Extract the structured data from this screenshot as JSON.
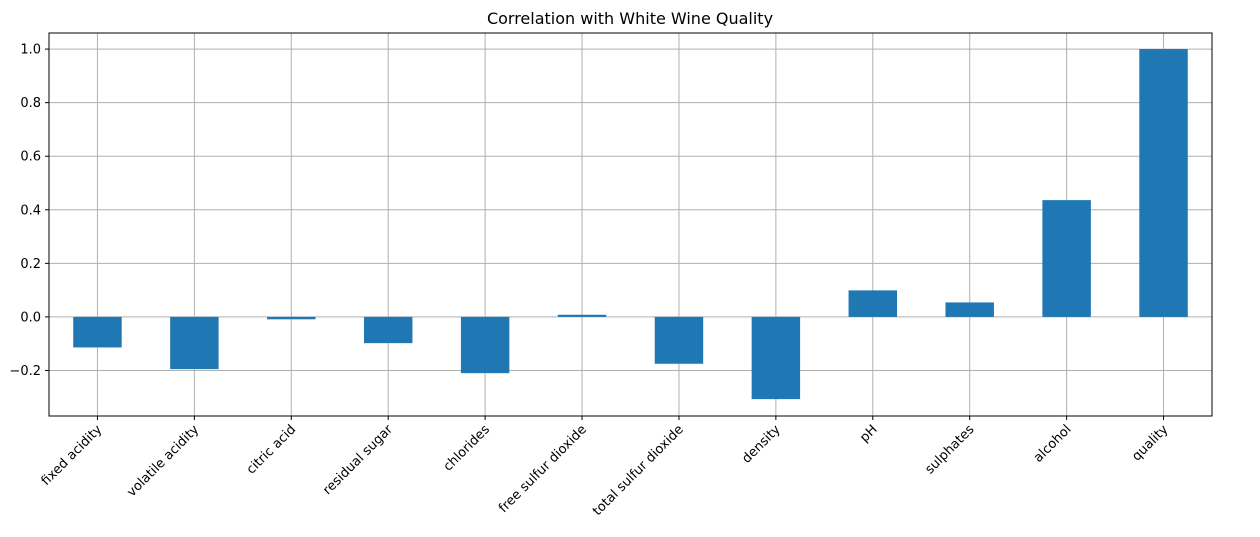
{
  "chart_data": {
    "type": "bar",
    "title": "Correlation with White Wine Quality",
    "xlabel": "",
    "ylabel": "",
    "categories": [
      "fixed acidity",
      "volatile acidity",
      "citric acid",
      "residual sugar",
      "chlorides",
      "free sulfur dioxide",
      "total sulfur dioxide",
      "density",
      "pH",
      "sulphates",
      "alcohol",
      "quality"
    ],
    "values": [
      -0.114,
      -0.195,
      -0.009,
      -0.098,
      -0.21,
      0.008,
      -0.175,
      -0.307,
      0.099,
      0.054,
      0.436,
      1.0
    ],
    "ylim": [
      -0.37,
      1.06
    ],
    "yticks": [
      -0.2,
      0.0,
      0.2,
      0.4,
      0.6,
      0.8,
      1.0
    ],
    "ytick_labels": [
      "−0.2",
      "0.0",
      "0.2",
      "0.4",
      "0.6",
      "0.8",
      "1.0"
    ],
    "grid": true,
    "bar_color": "#1f77b4"
  }
}
